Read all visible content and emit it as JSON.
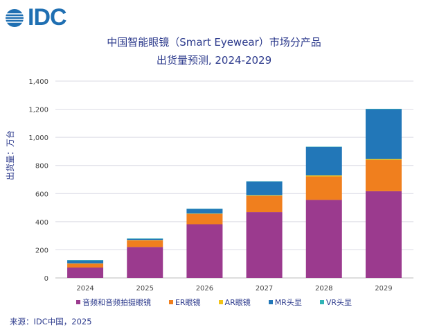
{
  "logo": "IDC",
  "chart_data": {
    "type": "bar",
    "stacked": true,
    "title": "中国智能眼镜（Smart Eyewear）市场分产品",
    "subtitle": "出货量预测, 2024-2029",
    "ylabel": "出货量：万台",
    "xlabel": "",
    "ylim": [
      0,
      1400
    ],
    "yticks": [
      "0",
      "200",
      "400",
      "600",
      "800",
      "1,000",
      "1,200",
      "1,400"
    ],
    "grid": true,
    "legend_position": "bottom",
    "categories": [
      "2024",
      "2025",
      "2026",
      "2027",
      "2028",
      "2029"
    ],
    "series": [
      {
        "name": "音频和音频拍摄眼镜",
        "color": "#9b3a8e",
        "values": [
          74,
          220,
          382,
          468,
          555,
          617
        ]
      },
      {
        "name": "ER眼镜",
        "color": "#f07f1e",
        "values": [
          28,
          48,
          73,
          115,
          167,
          221
        ]
      },
      {
        "name": "AR眼镜",
        "color": "#f2c318",
        "values": [
          1,
          2,
          3,
          5,
          7,
          8
        ]
      },
      {
        "name": "MR头显",
        "color": "#2277b8",
        "values": [
          22,
          8,
          33,
          98,
          203,
          354
        ]
      },
      {
        "name": "VR头显",
        "color": "#2fb3b5",
        "values": [
          3,
          3,
          2,
          2,
          2,
          3
        ]
      }
    ]
  },
  "source": "来源：IDC中国，2025"
}
